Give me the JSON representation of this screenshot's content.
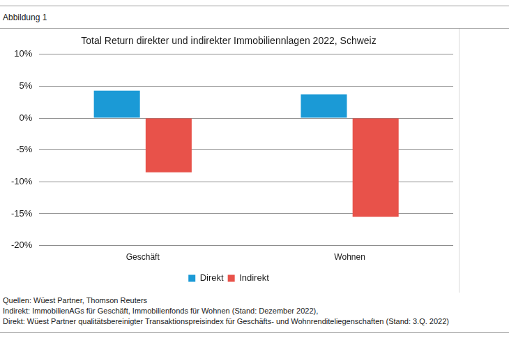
{
  "header": "Abbildung 1",
  "chart_data": {
    "type": "bar",
    "title": "Total Return direkter und indirekter Immobiliennlagen 2022, Schweiz",
    "categories": [
      "Geschäft",
      "Wohnen"
    ],
    "series": [
      {
        "name": "Direkt",
        "color": "#1b9ad6",
        "values": [
          4.3,
          3.7
        ]
      },
      {
        "name": "Indirekt",
        "color": "#e8524a",
        "values": [
          -8.5,
          -15.5
        ]
      }
    ],
    "ylim": [
      -20,
      10
    ],
    "yticks": [
      {
        "value": -20,
        "label": "-20%"
      },
      {
        "value": -15,
        "label": "-15%"
      },
      {
        "value": -10,
        "label": "-10%"
      },
      {
        "value": -5,
        "label": "-5%"
      },
      {
        "value": 0,
        "label": "0%"
      },
      {
        "value": 5,
        "label": "5%"
      },
      {
        "value": 10,
        "label": "10%"
      }
    ],
    "grid": true,
    "legend": "bottom"
  },
  "footer": [
    "Quellen: Wüest Partner, Thomson Reuters",
    "Indirekt: ImmobilienAGs für Geschäft, Immobilienfonds für Wohnen (Stand: Dezember 2022),",
    "Direkt: Wüest Partner qualitätsbereinigter Transaktionspreisindex für Geschäfts- und Wohnrenditeliegenschaften (Stand: 3.Q. 2022)"
  ]
}
